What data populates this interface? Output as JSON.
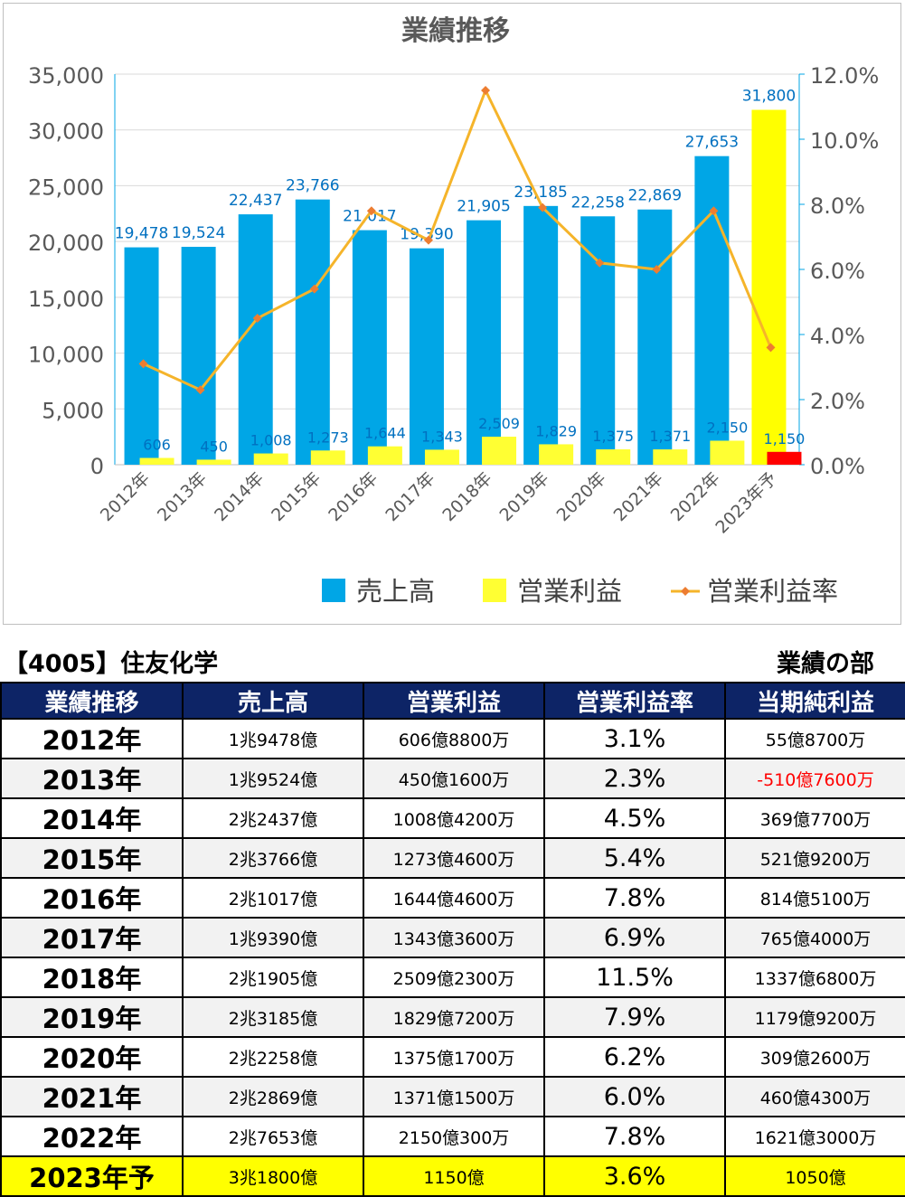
{
  "chart_data": {
    "type": "bar",
    "title": "業績推移",
    "categories": [
      "2012年",
      "2013年",
      "2014年",
      "2015年",
      "2016年",
      "2017年",
      "2018年",
      "2019年",
      "2020年",
      "2021年",
      "2022年",
      "2023年予"
    ],
    "series": [
      {
        "name": "売上高",
        "axis": "left",
        "color": "#00a6e6",
        "values": [
          19478,
          19524,
          22437,
          23766,
          21017,
          19390,
          21905,
          23185,
          22258,
          22869,
          27653,
          31800
        ]
      },
      {
        "name": "営業利益",
        "axis": "left",
        "color": "#ffff33",
        "values": [
          606,
          450,
          1008,
          1273,
          1644,
          1343,
          2509,
          1829,
          1375,
          1371,
          2150,
          1150
        ]
      },
      {
        "name": "営業利益率",
        "axis": "right",
        "type": "line",
        "color": "#f5b42a",
        "values": [
          3.1,
          2.3,
          4.5,
          5.4,
          7.8,
          6.9,
          11.5,
          7.9,
          6.2,
          6.0,
          7.8,
          3.6
        ]
      }
    ],
    "value_labels": {
      "売上高": [
        "19,478",
        "19,524",
        "22,437",
        "23,766",
        "21,017",
        "19,390",
        "21,905",
        "23,185",
        "22,258",
        "22,869",
        "27,653",
        "31,800"
      ],
      "営業利益": [
        "606",
        "450",
        "1,008",
        "1,273",
        "1,644",
        "1,343",
        "2,509",
        "1,829",
        "1,375",
        "1,371",
        "2,150",
        "1,150"
      ]
    },
    "forecast_bar_color": "#ffff00",
    "forecast_profit_color": "#ff0000",
    "ylim": [
      0,
      35000
    ],
    "y_ticks": [
      "0",
      "5,000",
      "10,000",
      "15,000",
      "20,000",
      "25,000",
      "30,000",
      "35,000"
    ],
    "y2lim": [
      0,
      12
    ],
    "y2_ticks": [
      "0.0%",
      "2.0%",
      "4.0%",
      "6.0%",
      "8.0%",
      "10.0%",
      "12.0%"
    ],
    "legend_position": "bottom",
    "grid": true
  },
  "table": {
    "company": "【4005】住友化学",
    "section": "業績の部",
    "headers": [
      "業績推移",
      "売上高",
      "営業利益",
      "営業利益率",
      "当期純利益"
    ],
    "rows": [
      [
        "2012年",
        "1兆9478億",
        "606億8800万",
        "3.1%",
        "55億8700万"
      ],
      [
        "2013年",
        "1兆9524億",
        "450億1600万",
        "2.3%",
        "-510億7600万"
      ],
      [
        "2014年",
        "2兆2437億",
        "1008億4200万",
        "4.5%",
        "369億7700万"
      ],
      [
        "2015年",
        "2兆3766億",
        "1273億4600万",
        "5.4%",
        "521億9200万"
      ],
      [
        "2016年",
        "2兆1017億",
        "1644億4600万",
        "7.8%",
        "814億5100万"
      ],
      [
        "2017年",
        "1兆9390億",
        "1343億3600万",
        "6.9%",
        "765億4000万"
      ],
      [
        "2018年",
        "2兆1905億",
        "2509億2300万",
        "11.5%",
        "1337億6800万"
      ],
      [
        "2019年",
        "2兆3185億",
        "1829億7200万",
        "7.9%",
        "1179億9200万"
      ],
      [
        "2020年",
        "2兆2258億",
        "1375億1700万",
        "6.2%",
        "309億2600万"
      ],
      [
        "2021年",
        "2兆2869億",
        "1371億1500万",
        "6.0%",
        "460億4300万"
      ],
      [
        "2022年",
        "2兆7653億",
        "2150億300万",
        "7.8%",
        "1621億3000万"
      ],
      [
        "2023年予",
        "3兆1800億",
        "1150億",
        "3.6%",
        "1050億"
      ]
    ],
    "colors": {
      "header_bg": "#0d2466",
      "forecast_row_bg": "#ffff00",
      "negative_text": "#ff0000"
    }
  }
}
